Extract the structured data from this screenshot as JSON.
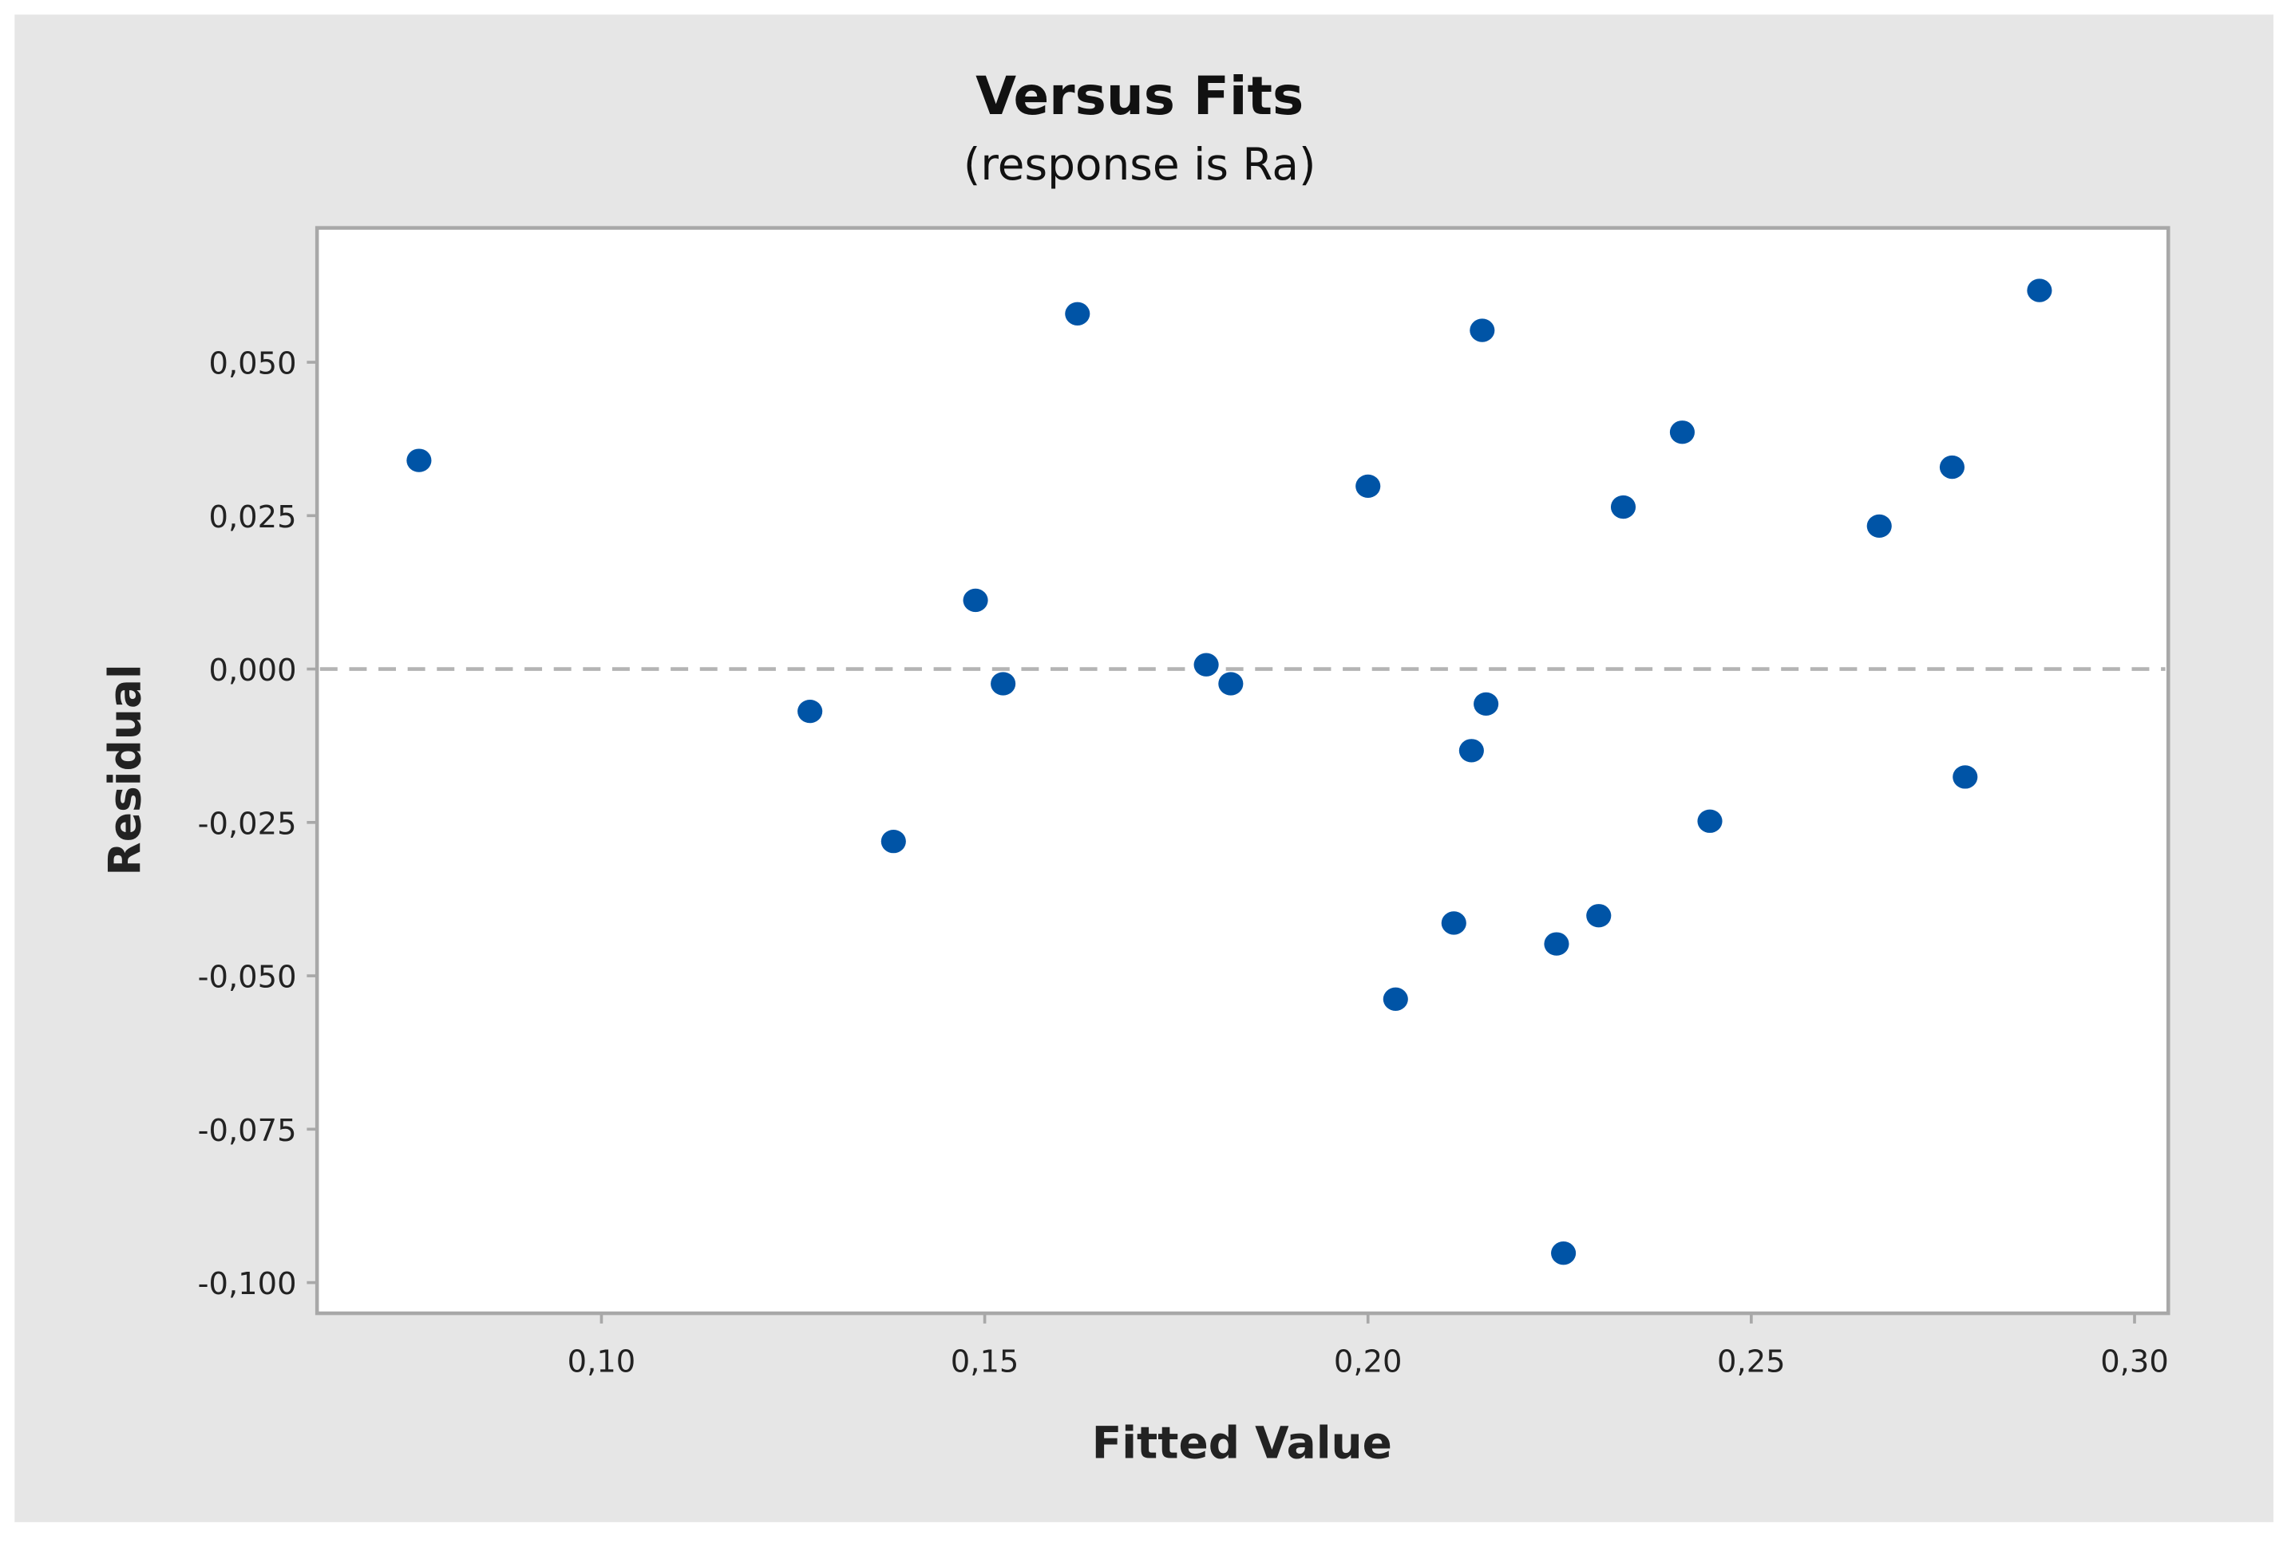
{
  "chart_data": {
    "type": "scatter",
    "title": "Versus Fits",
    "subtitle": "(response is Ra)",
    "xlabel": "Fitted Value",
    "ylabel": "Residual",
    "xlim": [
      0.0629,
      0.3044
    ],
    "ylim": [
      -0.105,
      0.0719
    ],
    "xticks": [
      0.1,
      0.15,
      0.2,
      0.25,
      0.3
    ],
    "xtick_labels": [
      "0,10",
      "0,15",
      "0,20",
      "0,25",
      "0,30"
    ],
    "yticks": [
      0.05,
      0.025,
      0.0,
      -0.025,
      -0.05,
      -0.075,
      -0.1
    ],
    "ytick_labels": [
      "0,050",
      "0,025",
      "0,000",
      "-0,025",
      "-0,050",
      "-0,075",
      "-0,100"
    ],
    "reference_line": {
      "y": 0,
      "style": "dashed",
      "color": "#b4b4b4"
    },
    "grid": false,
    "marker_color": "#0054a6",
    "background_color": "#e6e6e6",
    "points": [
      {
        "x": 0.0762,
        "y": 0.034
      },
      {
        "x": 0.1272,
        "y": -0.0069
      },
      {
        "x": 0.1381,
        "y": -0.0281
      },
      {
        "x": 0.1488,
        "y": 0.0112
      },
      {
        "x": 0.1524,
        "y": -0.0024
      },
      {
        "x": 0.1621,
        "y": 0.0579
      },
      {
        "x": 0.1789,
        "y": 0.0007
      },
      {
        "x": 0.1821,
        "y": -0.0024
      },
      {
        "x": 0.2,
        "y": 0.0298
      },
      {
        "x": 0.2036,
        "y": -0.0538
      },
      {
        "x": 0.2112,
        "y": -0.0414
      },
      {
        "x": 0.2135,
        "y": -0.0133
      },
      {
        "x": 0.2149,
        "y": 0.0552
      },
      {
        "x": 0.2154,
        "y": -0.0057
      },
      {
        "x": 0.2246,
        "y": -0.0448
      },
      {
        "x": 0.2255,
        "y": -0.0952
      },
      {
        "x": 0.2301,
        "y": -0.0402
      },
      {
        "x": 0.2333,
        "y": 0.0264
      },
      {
        "x": 0.241,
        "y": 0.0386
      },
      {
        "x": 0.2446,
        "y": -0.0248
      },
      {
        "x": 0.2667,
        "y": 0.0233
      },
      {
        "x": 0.2762,
        "y": 0.0329
      },
      {
        "x": 0.2779,
        "y": -0.0176
      },
      {
        "x": 0.2876,
        "y": 0.0617
      }
    ]
  }
}
